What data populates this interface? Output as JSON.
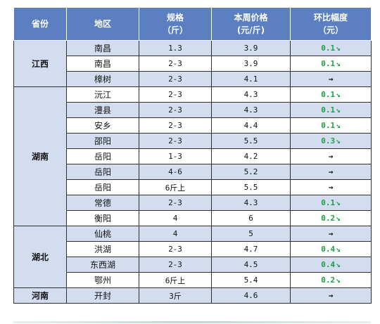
{
  "header": {
    "province": "省份",
    "region": "地区",
    "spec_line1": "规格",
    "spec_line2": "（斤）",
    "price_line1": "本周价格",
    "price_line2": "(元/斤)",
    "change_line1": "环比幅度",
    "change_line2": "（元）"
  },
  "groups": [
    {
      "province": "江西",
      "rows": [
        {
          "region": "南昌",
          "spec": "1.3",
          "price": "3.9",
          "change": "0.1",
          "trend": "down"
        },
        {
          "region": "南昌",
          "spec": "2-3",
          "price": "3.9",
          "change": "0.1",
          "trend": "down"
        },
        {
          "region": "樟树",
          "spec": "2-3",
          "price": "4.1",
          "change": "",
          "trend": "flat"
        }
      ]
    },
    {
      "province": "湖南",
      "rows": [
        {
          "region": "沅江",
          "spec": "2-3",
          "price": "4.3",
          "change": "0.1",
          "trend": "down"
        },
        {
          "region": "澧县",
          "spec": "2-3",
          "price": "4.3",
          "change": "0.1",
          "trend": "down"
        },
        {
          "region": "安乡",
          "spec": "2-3",
          "price": "4.4",
          "change": "0.1",
          "trend": "down"
        },
        {
          "region": "邵阳",
          "spec": "2-3",
          "price": "5.5",
          "change": "0.3",
          "trend": "down"
        },
        {
          "region": "岳阳",
          "spec": "1-3",
          "price": "4.2",
          "change": "",
          "trend": "flat"
        },
        {
          "region": "岳阳",
          "spec": "4-6",
          "price": "5.2",
          "change": "",
          "trend": "flat"
        },
        {
          "region": "岳阳",
          "spec": "6斤上",
          "price": "5.5",
          "change": "",
          "trend": "flat"
        },
        {
          "region": "常德",
          "spec": "2-3",
          "price": "4.3",
          "change": "0.1",
          "trend": "down"
        },
        {
          "region": "衡阳",
          "spec": "4",
          "price": "6",
          "change": "0.2",
          "trend": "down"
        }
      ]
    },
    {
      "province": "湖北",
      "rows": [
        {
          "region": "仙桃",
          "spec": "4",
          "price": "5",
          "change": "",
          "trend": "flat"
        },
        {
          "region": "洪湖",
          "spec": "2-3",
          "price": "4.7",
          "change": "0.4",
          "trend": "down"
        },
        {
          "region": "东西湖",
          "spec": "2-3",
          "price": "4.5",
          "change": "0.4",
          "trend": "down"
        },
        {
          "region": "鄂州",
          "spec": "6斤上",
          "price": "5.4",
          "change": "0.2",
          "trend": "down"
        }
      ]
    },
    {
      "province": "河南",
      "rows": [
        {
          "region": "开封",
          "spec": "3斤",
          "price": "4.6",
          "change": "",
          "trend": "flat"
        }
      ]
    }
  ],
  "trend_symbols": {
    "down": "↘",
    "flat": "→"
  },
  "colors": {
    "header_bg": "#5b7fc0",
    "stripe_bg": "#d4ddf0",
    "decline_text": "#1aa146"
  }
}
